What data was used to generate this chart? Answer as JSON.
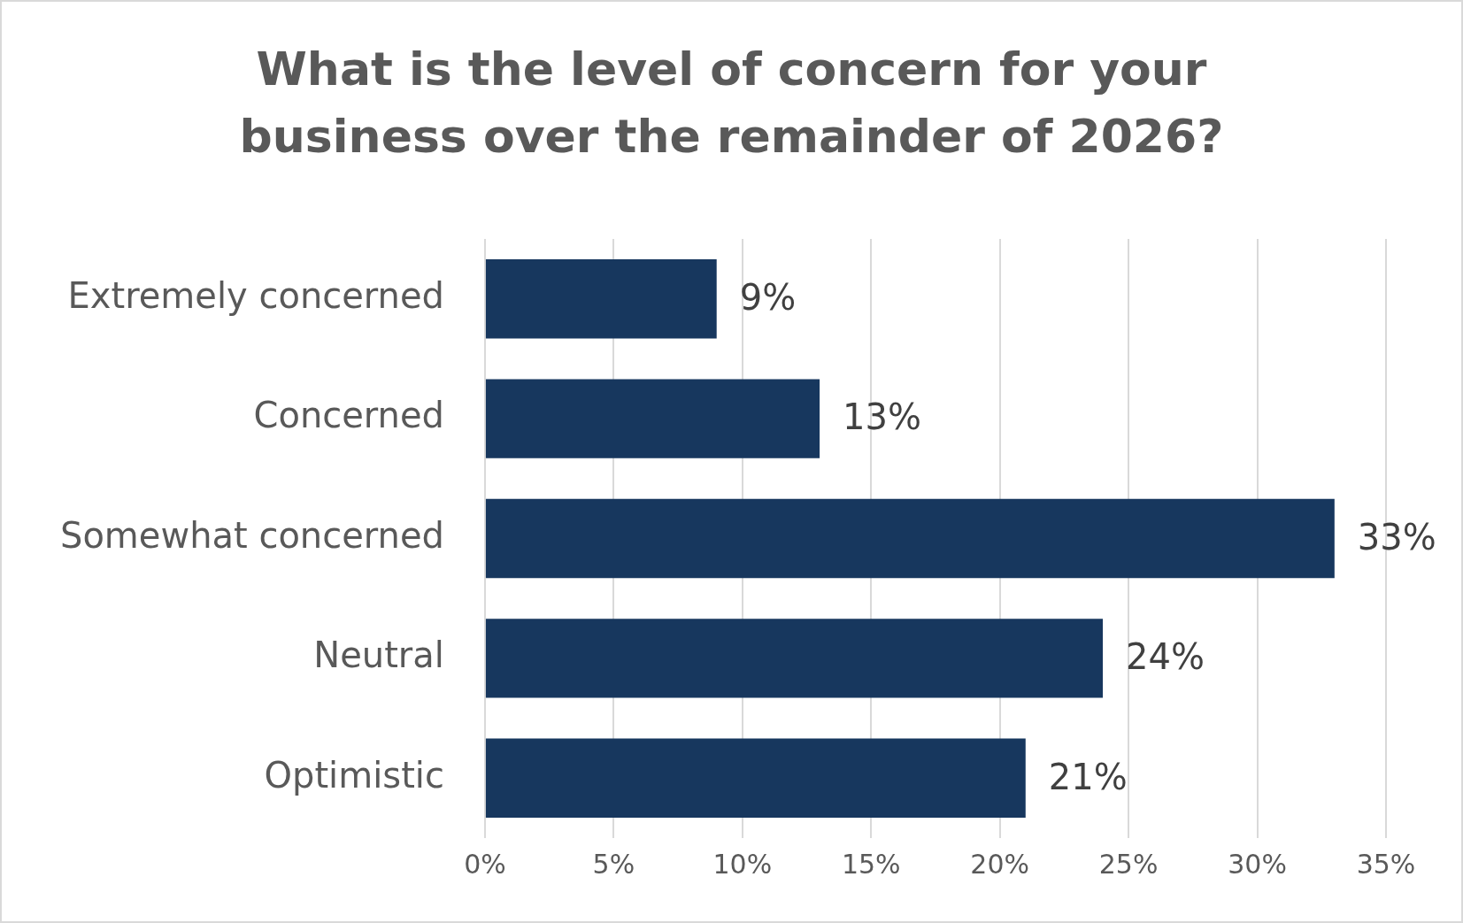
{
  "chart_data": {
    "type": "bar",
    "orientation": "horizontal",
    "title": "What is the level of concern for your business over the remainder of 2026?",
    "categories": [
      "Extremely concerned",
      "Concerned",
      "Somewhat concerned",
      "Neutral",
      "Optimistic"
    ],
    "values": [
      9,
      13,
      33,
      24,
      21
    ],
    "value_labels": [
      "9%",
      "13%",
      "33%",
      "24%",
      "21%"
    ],
    "color": "#17375e",
    "xlim": [
      0,
      35
    ],
    "xticks": [
      {
        "value": 0,
        "label": "0%"
      },
      {
        "value": 5,
        "label": "5%"
      },
      {
        "value": 10,
        "label": "10%"
      },
      {
        "value": 15,
        "label": "15%"
      },
      {
        "value": 20,
        "label": "20%"
      },
      {
        "value": 25,
        "label": "25%"
      },
      {
        "value": 30,
        "label": "30%"
      },
      {
        "value": 35,
        "label": "35%"
      }
    ],
    "grid": "x",
    "legend": false
  }
}
